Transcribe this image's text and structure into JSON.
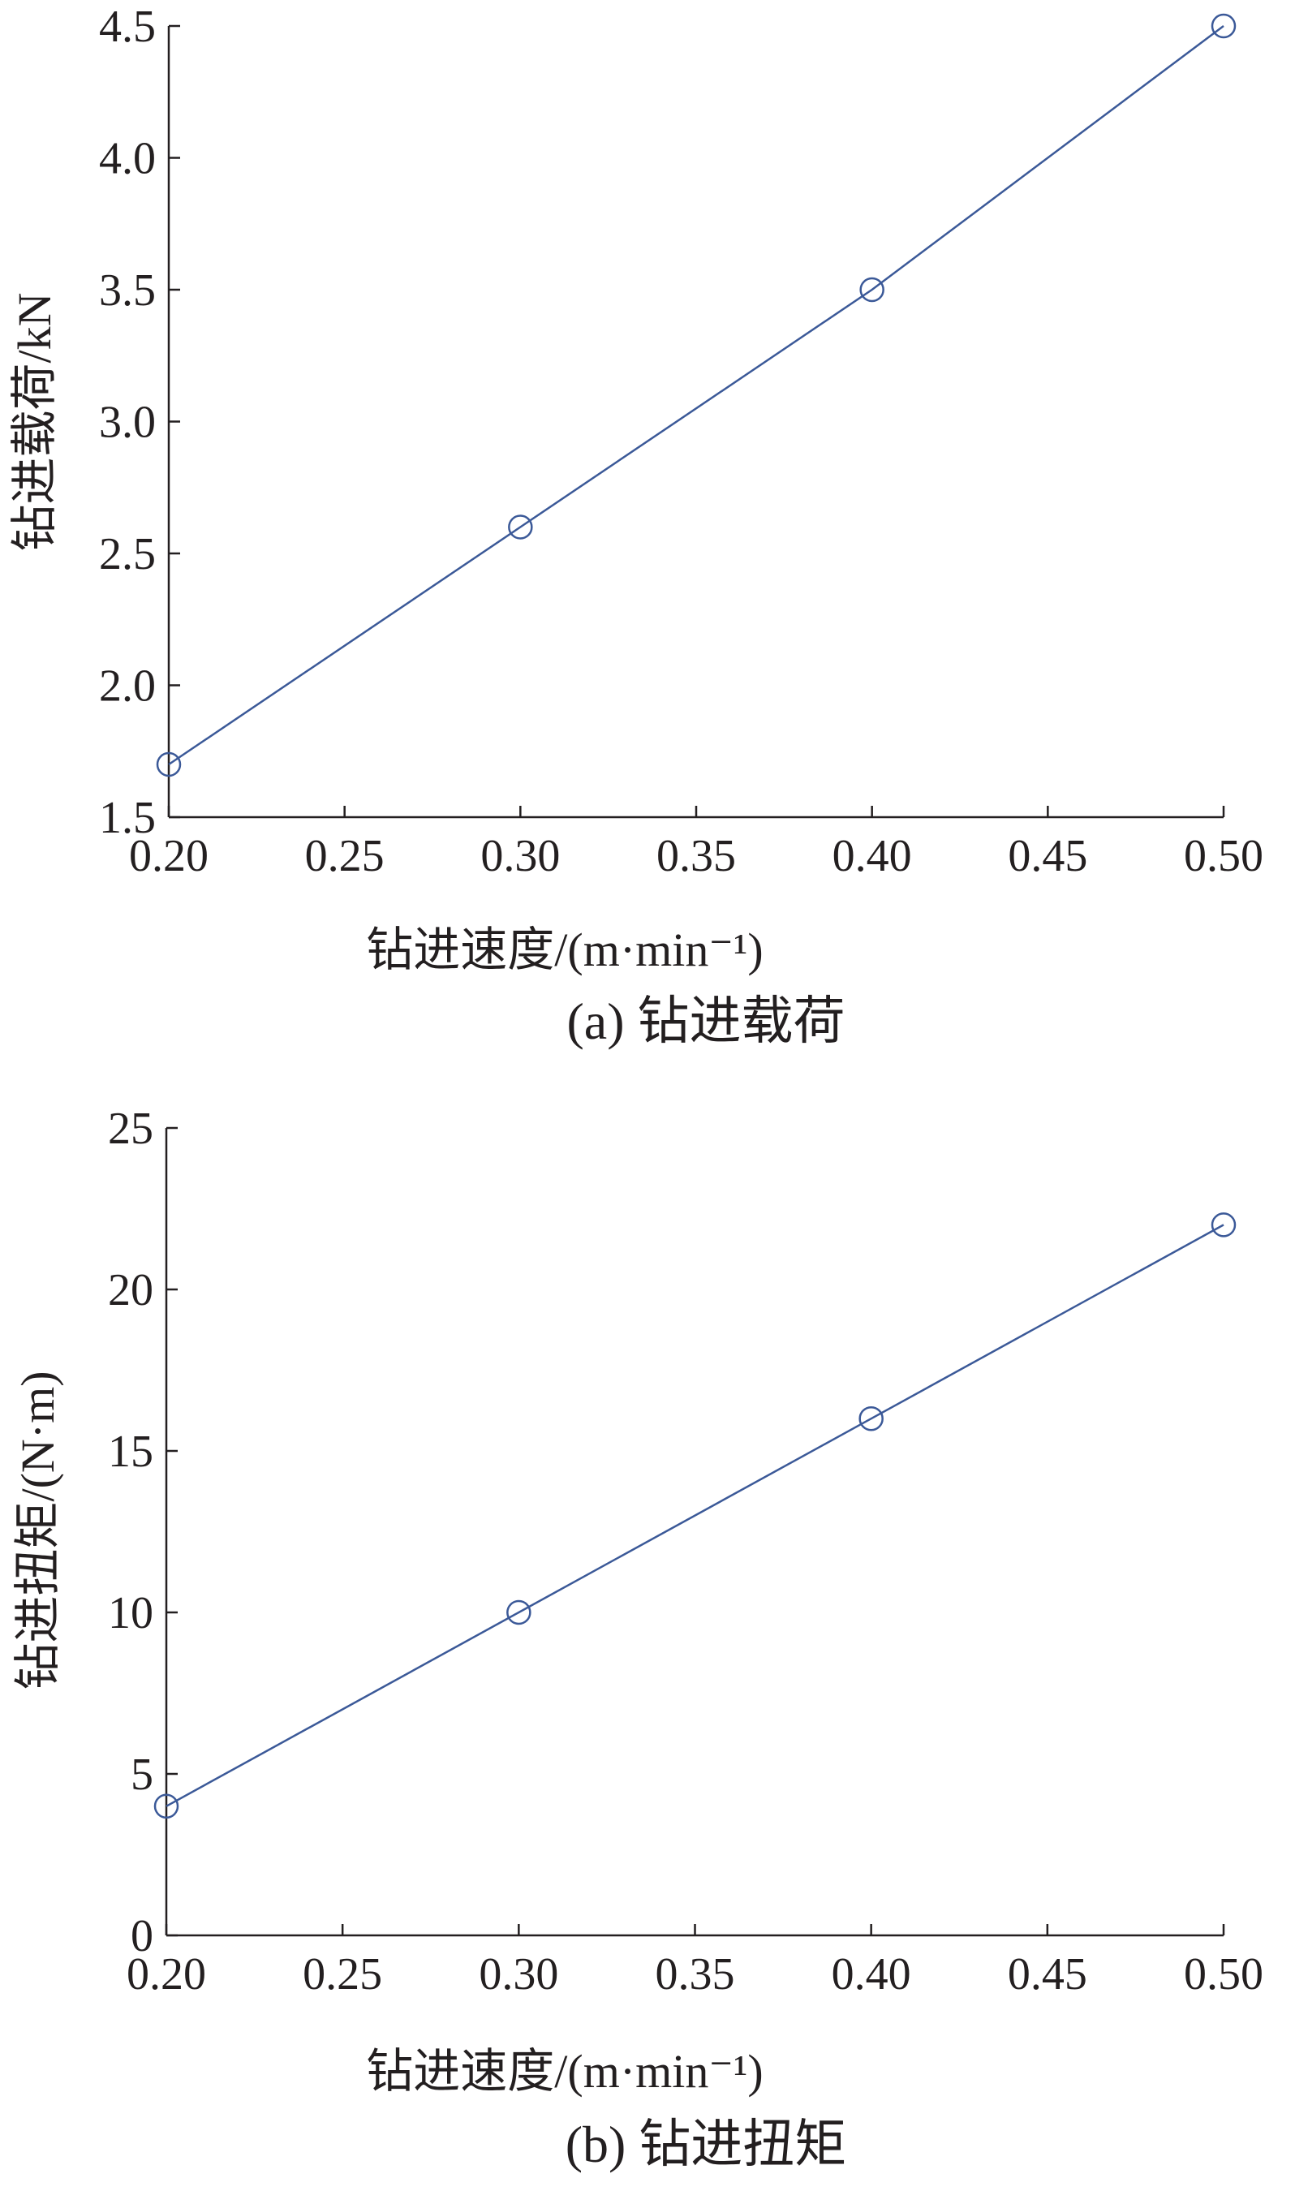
{
  "chart_data": [
    {
      "type": "line",
      "caption": "(a)  钻进载荷",
      "xlabel": "钻进速度/(m·min⁻¹)",
      "ylabel": "钻进载荷/kN",
      "xlim": [
        0.2,
        0.5
      ],
      "ylim": [
        1.5,
        4.5
      ],
      "xticks": [
        "0.20",
        "0.25",
        "0.30",
        "0.35",
        "0.40",
        "0.45",
        "0.50"
      ],
      "yticks": [
        "1.5",
        "2.0",
        "2.5",
        "3.0",
        "3.5",
        "4.0",
        "4.5"
      ],
      "grid": false,
      "series": [
        {
          "x": [
            0.2,
            0.3,
            0.4,
            0.5
          ],
          "values": [
            1.7,
            2.6,
            3.5,
            4.5
          ],
          "color": "#3b5998",
          "marker": "circle-open"
        }
      ]
    },
    {
      "type": "line",
      "caption": "(b)  钻进扭矩",
      "xlabel": "钻进速度/(m·min⁻¹)",
      "ylabel": "钻进扭矩/(N·m)",
      "xlim": [
        0.2,
        0.5
      ],
      "ylim": [
        0,
        25
      ],
      "xticks": [
        "0.20",
        "0.25",
        "0.30",
        "0.35",
        "0.40",
        "0.45",
        "0.50"
      ],
      "yticks": [
        "0",
        "5",
        "10",
        "15",
        "20",
        "25"
      ],
      "grid": false,
      "series": [
        {
          "x": [
            0.2,
            0.3,
            0.4,
            0.5
          ],
          "values": [
            4,
            10,
            16,
            22
          ],
          "color": "#3b5998",
          "marker": "circle-open"
        }
      ]
    }
  ]
}
